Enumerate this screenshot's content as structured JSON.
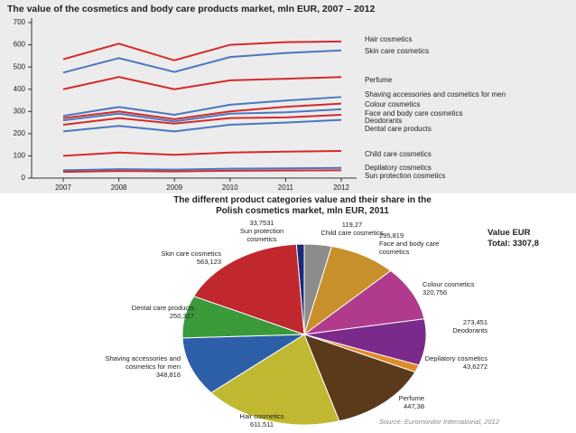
{
  "chart_data": [
    {
      "type": "line",
      "title": "The value of the cosmetics and body care products market, mln EUR, 2007 – 2012",
      "categories": [
        "2007",
        "2008",
        "2009",
        "2010",
        "2011",
        "2012"
      ],
      "ylim": [
        0,
        700
      ],
      "yticks": [
        0,
        100,
        200,
        300,
        400,
        500,
        600,
        700
      ],
      "series": [
        {
          "name": "Hair cosmetics",
          "color": "#d42a2a",
          "values": [
            535,
            605,
            530,
            600,
            612,
            615
          ]
        },
        {
          "name": "Skin care cosmetics",
          "color": "#4a78c0",
          "values": [
            475,
            540,
            478,
            545,
            563,
            575
          ]
        },
        {
          "name": "Perfume",
          "color": "#d42a2a",
          "values": [
            400,
            455,
            400,
            440,
            447,
            455
          ]
        },
        {
          "name": "Shaving accessories and cosmetics for men",
          "color": "#4a78c0",
          "values": [
            280,
            320,
            285,
            330,
            349,
            365
          ]
        },
        {
          "name": "Colour cosmetics",
          "color": "#d42a2a",
          "values": [
            270,
            300,
            265,
            300,
            321,
            335
          ]
        },
        {
          "name": "Face and body care cosmetics",
          "color": "#4a78c0",
          "values": [
            260,
            290,
            255,
            290,
            296,
            310
          ]
        },
        {
          "name": "Deodorants",
          "color": "#d42a2a",
          "values": [
            240,
            270,
            245,
            270,
            273,
            285
          ]
        },
        {
          "name": "Dental care products",
          "color": "#4a78c0",
          "values": [
            210,
            235,
            210,
            240,
            250,
            262
          ]
        },
        {
          "name": "Child care cosmetics",
          "color": "#d42a2a",
          "values": [
            100,
            115,
            105,
            115,
            119,
            122
          ]
        },
        {
          "name": "Depilatory cosmetics",
          "color": "#4a78c0",
          "values": [
            35,
            40,
            38,
            42,
            44,
            46
          ]
        },
        {
          "name": "Sun protection cosmetics",
          "color": "#d42a2a",
          "values": [
            28,
            32,
            30,
            33,
            34,
            35
          ]
        }
      ]
    },
    {
      "type": "pie",
      "title": "The different product categories value and their share in the Polish cosmetics market, mln EUR, 2011",
      "categories": [
        "Child care cosmetics",
        "Face and body care cosmetics",
        "Colour cosmetics",
        "Deodorants",
        "Depilatory cosmetics",
        "Perfume",
        "Hair cosmetics",
        "Shaving accessories and cosmetics for men",
        "Dental care products",
        "Skin care cosmetics",
        "Sun protection cosmetics"
      ],
      "values": [
        119.27,
        295.819,
        320.756,
        273.451,
        43.6272,
        447.38,
        611.511,
        348.816,
        250.327,
        563.123,
        33.7531
      ],
      "value_labels": [
        "119,27",
        "295,819",
        "320,756",
        "273,451",
        "43,6272",
        "447,38",
        "611,511",
        "348,816",
        "250,327",
        "563,123",
        "33,7531"
      ],
      "colors": [
        "#8c8c8c",
        "#c8902a",
        "#b03a8c",
        "#7a2a8a",
        "#e08a2a",
        "#5a3a1a",
        "#c0b830",
        "#2c5fa8",
        "#3a9a3a",
        "#c0282e",
        "#1a2a7a"
      ],
      "value_title": "Value EUR",
      "total": "Total: 3307,8",
      "source": "Source: Euromonitor International, 2012"
    }
  ]
}
